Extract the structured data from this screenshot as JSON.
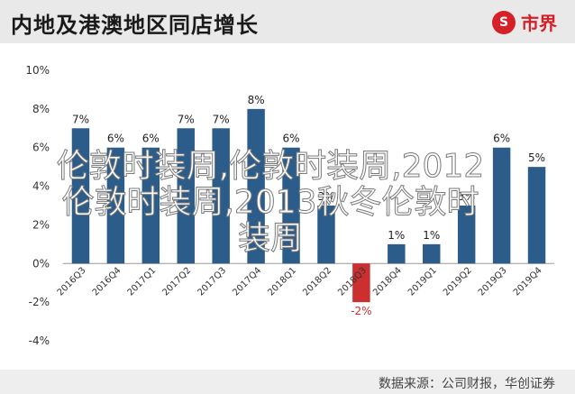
{
  "header": {
    "title": "内地及港澳地区同店增长",
    "logo_symbol": "S",
    "logo_text": "市界"
  },
  "overlay_text": "伦敦时装周,伦敦时装周,2012伦敦时装周,2013秋冬伦敦时装周",
  "source_text": "数据来源：公司财报，华创证券",
  "colors": {
    "bar": "#2b5c8a",
    "negative_bar": "#cc2f2f",
    "header_bg": "#e9e9e9",
    "logo": "#d61f26"
  },
  "chart_data": {
    "type": "bar",
    "categories": [
      "2016Q3",
      "2016Q4",
      "2017Q1",
      "2017Q2",
      "2017Q3",
      "2017Q4",
      "2018Q1",
      "2018Q2",
      "2018Q3",
      "2018Q4",
      "2019Q1",
      "2019Q2",
      "2019Q3",
      "2019Q4"
    ],
    "values": [
      7,
      6,
      6,
      7,
      7,
      8,
      6,
      3,
      -2,
      1,
      1,
      3,
      6,
      5
    ],
    "data_labels": [
      "7%",
      "6%",
      "6%",
      "7%",
      "7%",
      "8%",
      "6%",
      "3%",
      "-2%",
      "1%",
      "1%",
      "3%",
      "6%",
      "5%"
    ],
    "yticks": [
      "-4%",
      "-2%",
      "0%",
      "2%",
      "4%",
      "6%",
      "8%",
      "10%"
    ],
    "ylim": [
      -4,
      10
    ],
    "grid": false
  }
}
